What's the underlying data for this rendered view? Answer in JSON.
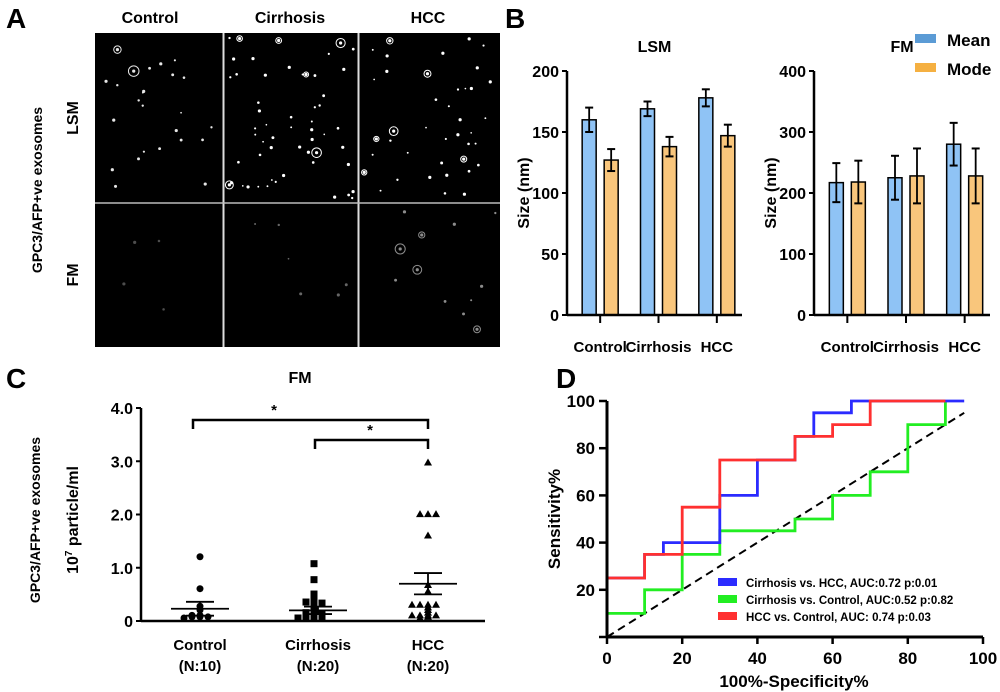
{
  "panel_labels": {
    "a": "A",
    "b": "B",
    "c": "C",
    "d": "D"
  },
  "panel_a": {
    "columns": [
      "Control",
      "Cirrhosis",
      "HCC"
    ],
    "rows": [
      "LSM",
      "FM"
    ],
    "ylabel": "GPC3/AFP+ve exosomes"
  },
  "colors": {
    "mean": "#8fc3f5",
    "mode": "#f9c67c",
    "legend_mean": "#5b9bd5",
    "legend_mode": "#f5b041",
    "blue": "#2b2bff",
    "green": "#22ee22",
    "red": "#ff3030"
  },
  "chart_data": [
    {
      "type": "bar",
      "title": "LSM",
      "ylabel": "Size (nm)",
      "ylim": [
        0,
        200
      ],
      "yticks": [
        "0",
        "50",
        "100",
        "150",
        "200"
      ],
      "categories": [
        "Control",
        "Cirrhosis",
        "HCC"
      ],
      "series": [
        {
          "name": "Mean",
          "values": [
            160,
            169,
            178
          ],
          "errors": [
            10,
            6,
            7
          ]
        },
        {
          "name": "Mode",
          "values": [
            127,
            138,
            147
          ],
          "errors": [
            9,
            8,
            9
          ]
        }
      ]
    },
    {
      "type": "bar",
      "title": "FM",
      "ylabel": "Size (nm)",
      "ylim": [
        0,
        400
      ],
      "yticks": [
        "0",
        "100",
        "200",
        "300",
        "400"
      ],
      "categories": [
        "Control",
        "Cirrhosis",
        "HCC"
      ],
      "legend": [
        "Mean",
        "Mode"
      ],
      "legend_position": "top-right",
      "series": [
        {
          "name": "Mean",
          "values": [
            217,
            225,
            280
          ],
          "errors": [
            32,
            36,
            35
          ]
        },
        {
          "name": "Mode",
          "values": [
            218,
            228,
            228
          ],
          "errors": [
            35,
            45,
            45
          ]
        }
      ]
    },
    {
      "type": "scatter",
      "title": "FM",
      "ylabel_line1": "GPC3/AFP+ve exosomes",
      "ylabel_line2": "10",
      "ylabel_sup": "7",
      "ylabel_line2_rest": " particle/ml",
      "ylim": [
        0,
        4.0
      ],
      "yticks": [
        "0",
        "1.0",
        "2.0",
        "3.0",
        "4.0"
      ],
      "categories": [
        "Control",
        "Cirrhosis",
        "HCC"
      ],
      "category_n": [
        "(N:10)",
        "(N:20)",
        "(N:20)"
      ],
      "markers": [
        "circle",
        "square",
        "triangle"
      ],
      "groups": [
        {
          "values": [
            1.15,
            0.55,
            0.22,
            0.15,
            0.05,
            0.05,
            0.02,
            0.02,
            0.02,
            0.0
          ],
          "mean": 0.23,
          "sem": 0.13
        },
        {
          "values": [
            1.02,
            0.72,
            0.45,
            0.35,
            0.32,
            0.3,
            0.28,
            0.25,
            0.2,
            0.15,
            0.12,
            0.1,
            0.08,
            0.05,
            0.05,
            0.03,
            0.02,
            0.02,
            0.01,
            0.0
          ],
          "mean": 0.2,
          "sem": 0.07
        },
        {
          "values": [
            2.92,
            1.95,
            1.95,
            1.95,
            1.55,
            0.62,
            0.5,
            0.25,
            0.25,
            0.25,
            0.25,
            0.2,
            0.15,
            0.1,
            0.05,
            0.05,
            0.05,
            0.05,
            0.02,
            0.0
          ],
          "mean": 0.7,
          "sem": 0.2
        }
      ],
      "significance": [
        {
          "from": "Control",
          "to": "HCC",
          "label": "*"
        },
        {
          "from": "Cirrhosis",
          "to": "HCC",
          "label": "*"
        }
      ]
    },
    {
      "type": "line",
      "xlabel": "100%-Specificity%",
      "ylabel": "Sensitivity%",
      "xlim": [
        0,
        100
      ],
      "ylim": [
        0,
        100
      ],
      "xticks": [
        "0",
        "20",
        "40",
        "60",
        "80",
        "100"
      ],
      "yticks": [
        "20",
        "40",
        "60",
        "80",
        "100"
      ],
      "legend_position": "bottom-right",
      "series": [
        {
          "name": "Cirrhosis vs. HCC, AUC:0.72 p:0.01",
          "color": "#2b2bff",
          "points": [
            [
              0,
              0
            ],
            [
              0,
              25
            ],
            [
              10,
              25
            ],
            [
              10,
              35
            ],
            [
              15,
              35
            ],
            [
              15,
              40
            ],
            [
              30,
              40
            ],
            [
              30,
              60
            ],
            [
              40,
              60
            ],
            [
              40,
              75
            ],
            [
              50,
              75
            ],
            [
              50,
              85
            ],
            [
              55,
              85
            ],
            [
              55,
              95
            ],
            [
              65,
              95
            ],
            [
              65,
              100
            ],
            [
              95,
              100
            ]
          ]
        },
        {
          "name": "Cirrhosis vs. Control, AUC:0.52 p:0.82",
          "color": "#22ee22",
          "points": [
            [
              0,
              5
            ],
            [
              0,
              10
            ],
            [
              10,
              10
            ],
            [
              10,
              20
            ],
            [
              20,
              20
            ],
            [
              20,
              35
            ],
            [
              30,
              35
            ],
            [
              30,
              45
            ],
            [
              50,
              45
            ],
            [
              50,
              50
            ],
            [
              60,
              50
            ],
            [
              60,
              60
            ],
            [
              70,
              60
            ],
            [
              70,
              70
            ],
            [
              80,
              70
            ],
            [
              80,
              90
            ],
            [
              90,
              90
            ],
            [
              90,
              100
            ]
          ]
        },
        {
          "name": "HCC vs. Control, AUC: 0.74 p:0.03",
          "color": "#ff3030",
          "points": [
            [
              0,
              5
            ],
            [
              0,
              25
            ],
            [
              10,
              25
            ],
            [
              10,
              35
            ],
            [
              20,
              35
            ],
            [
              20,
              55
            ],
            [
              30,
              55
            ],
            [
              30,
              75
            ],
            [
              50,
              75
            ],
            [
              50,
              85
            ],
            [
              60,
              85
            ],
            [
              60,
              90
            ],
            [
              70,
              90
            ],
            [
              70,
              100
            ],
            [
              90,
              100
            ]
          ]
        }
      ],
      "reference_line": [
        [
          0,
          0
        ],
        [
          95,
          95
        ]
      ]
    }
  ]
}
